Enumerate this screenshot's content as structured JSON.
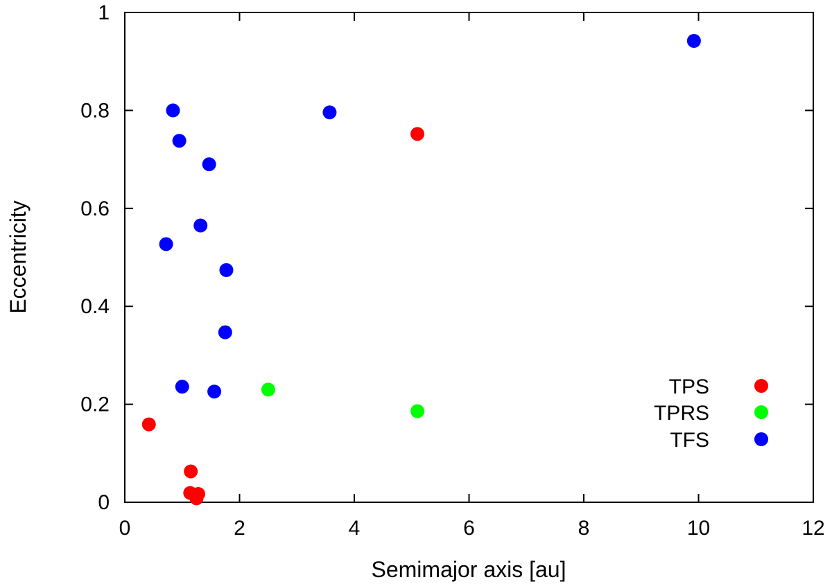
{
  "chart_data": {
    "type": "scatter",
    "title": "",
    "xlabel": "Semimajor axis [au]",
    "ylabel": "Eccentricity",
    "xlim": [
      0,
      12
    ],
    "ylim": [
      0,
      1
    ],
    "xticks": [
      0,
      2,
      4,
      6,
      8,
      10,
      12
    ],
    "yticks": [
      0,
      0.2,
      0.4,
      0.6,
      0.8,
      1
    ],
    "xtick_labels": [
      "0",
      "2",
      "4",
      "6",
      "8",
      "10",
      "12"
    ],
    "ytick_labels": [
      "0",
      "0.2",
      "0.4",
      "0.6",
      "0.8",
      "1"
    ],
    "grid": false,
    "legend_position": "bottom-right",
    "series": [
      {
        "name": "TPS",
        "color": "#ff0000",
        "points": [
          {
            "x": 0.42,
            "y": 0.159
          },
          {
            "x": 1.15,
            "y": 0.063
          },
          {
            "x": 1.14,
            "y": 0.019
          },
          {
            "x": 1.28,
            "y": 0.017
          },
          {
            "x": 1.25,
            "y": 0.008
          },
          {
            "x": 5.1,
            "y": 0.752
          }
        ]
      },
      {
        "name": "TPRS",
        "color": "#00ff00",
        "points": [
          {
            "x": 2.5,
            "y": 0.23
          },
          {
            "x": 5.1,
            "y": 0.186
          }
        ]
      },
      {
        "name": "TFS",
        "color": "#0000ff",
        "points": [
          {
            "x": 0.84,
            "y": 0.8
          },
          {
            "x": 0.95,
            "y": 0.738
          },
          {
            "x": 1.47,
            "y": 0.69
          },
          {
            "x": 1.32,
            "y": 0.565
          },
          {
            "x": 0.72,
            "y": 0.527
          },
          {
            "x": 1.77,
            "y": 0.474
          },
          {
            "x": 1.75,
            "y": 0.347
          },
          {
            "x": 1.0,
            "y": 0.236
          },
          {
            "x": 1.56,
            "y": 0.226
          },
          {
            "x": 3.57,
            "y": 0.796
          },
          {
            "x": 9.92,
            "y": 0.942
          }
        ]
      }
    ]
  }
}
